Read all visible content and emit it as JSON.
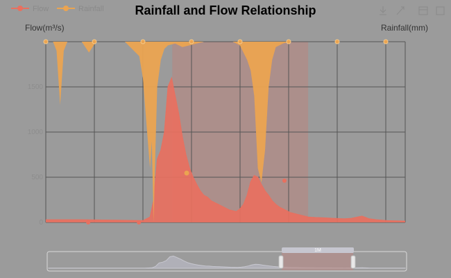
{
  "chart_data": {
    "type": "line",
    "title": "Rainfall and Flow Relationship",
    "legend": [
      "Flow",
      "Rainfall"
    ],
    "legend_position": "top-left",
    "y_left_label": "Flow(m³/s)",
    "y_right_label": "Rainfall(mm)",
    "y_left_ticks": [
      "0",
      "500",
      "1000",
      "1500"
    ],
    "y_left_range": [
      0,
      2000
    ],
    "y_right_inverted": true,
    "x_tick_labels": [
      "",
      "",
      "",
      "",
      "",
      "",
      "",
      ""
    ],
    "grid": true,
    "data_zoom_handle_label": "1M",
    "series": [
      {
        "name": "Flow",
        "color": "#e8705f",
        "x_index": [
          0,
          10,
          20,
          27,
          29,
          30,
          31,
          32,
          33,
          34,
          35,
          36,
          37,
          38,
          39,
          40,
          41,
          42,
          43,
          44,
          45,
          46,
          47,
          48,
          49,
          50,
          51,
          52,
          53,
          54,
          55,
          56,
          57,
          58,
          59,
          60,
          61,
          62,
          63,
          64,
          65,
          66,
          67,
          68,
          69,
          70,
          71,
          72,
          73,
          75,
          78,
          80,
          83,
          85,
          88,
          90,
          92,
          95,
          100
        ],
        "values": [
          30,
          30,
          25,
          20,
          60,
          250,
          700,
          800,
          1000,
          1500,
          1600,
          1400,
          1200,
          950,
          750,
          600,
          500,
          420,
          350,
          300,
          280,
          240,
          220,
          200,
          180,
          160,
          140,
          130,
          120,
          150,
          200,
          300,
          450,
          520,
          500,
          420,
          350,
          300,
          240,
          200,
          170,
          150,
          130,
          110,
          100,
          90,
          80,
          70,
          60,
          55,
          50,
          45,
          40,
          45,
          70,
          40,
          30,
          20,
          15
        ]
      },
      {
        "name": "Rainfall",
        "color": "#eba451",
        "x_index": [
          0,
          2,
          3,
          4,
          5,
          6,
          8,
          10,
          12,
          14,
          16,
          18,
          20,
          22,
          24,
          26,
          27,
          28,
          29,
          29.5,
          30,
          30.5,
          31,
          32,
          33,
          34,
          36,
          38,
          40,
          42,
          44,
          46,
          48,
          50,
          52,
          54,
          56,
          57,
          58,
          59,
          60,
          61,
          62,
          63,
          64,
          66,
          68,
          70,
          75,
          80,
          85,
          90,
          95,
          100
        ],
        "values": [
          0,
          0,
          5,
          35,
          5,
          0,
          0,
          0,
          6,
          0,
          0,
          0,
          0,
          0,
          4,
          8,
          20,
          45,
          70,
          55,
          100,
          60,
          25,
          10,
          4,
          2,
          1,
          3,
          2,
          1,
          0,
          0,
          0,
          0,
          0,
          2,
          10,
          16,
          30,
          70,
          78,
          60,
          25,
          10,
          3,
          1,
          0,
          0,
          0,
          0,
          0,
          0,
          0,
          0
        ]
      }
    ]
  }
}
